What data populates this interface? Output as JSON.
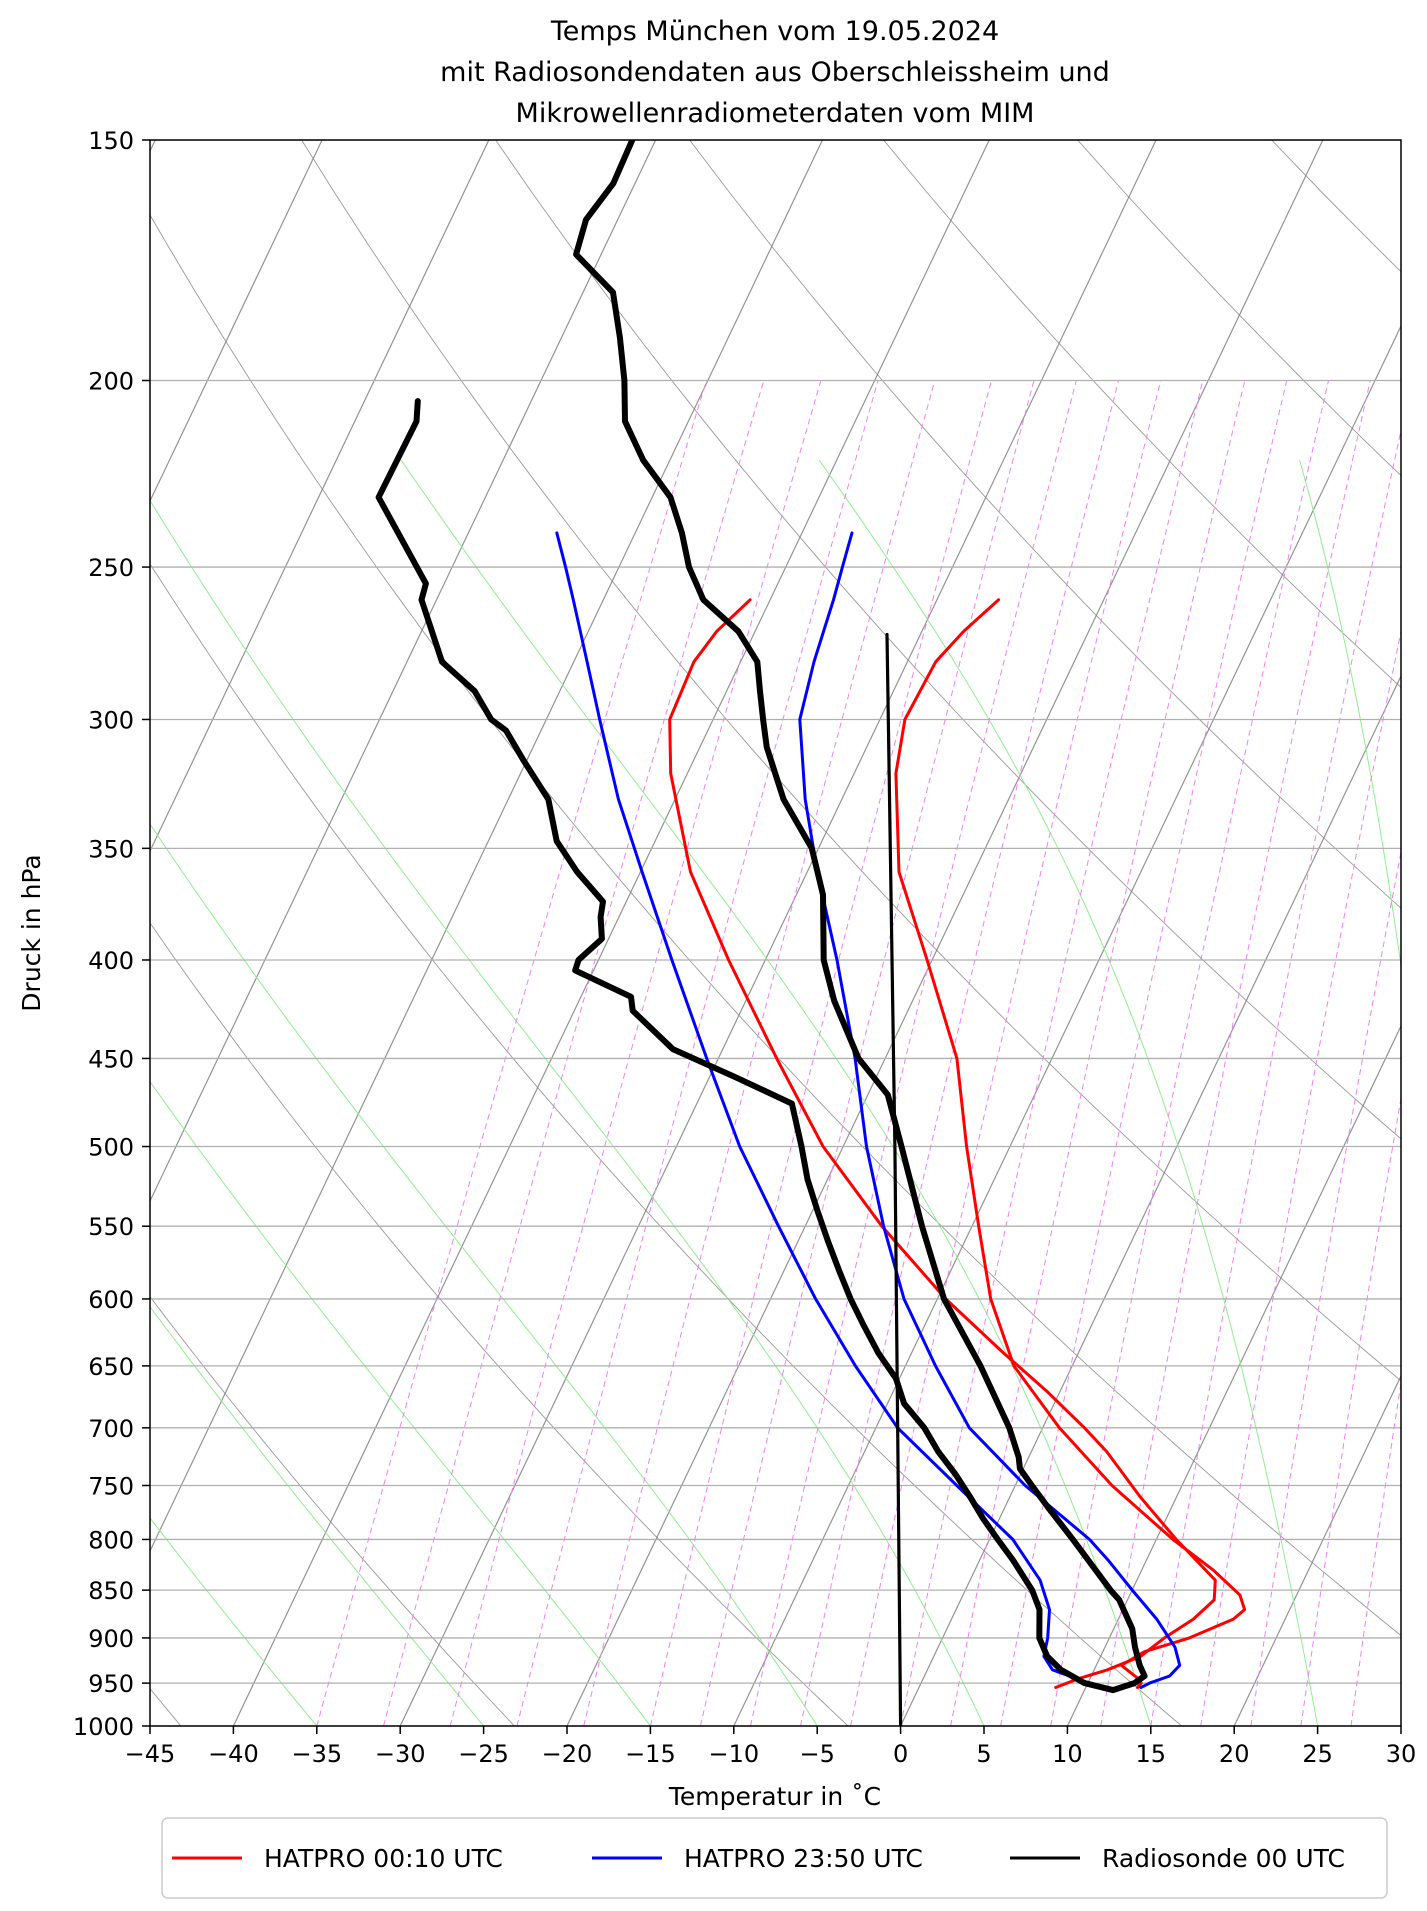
{
  "chart_data": {
    "type": "line",
    "title": {
      "lines": [
        "Temps München vom 19.05.2024",
        "mit Radiosondendaten aus Oberschleissheim und",
        "Mikrowellenradiometerdaten vom MIM"
      ]
    },
    "xlabel": "Temperatur in $^\\circ$C",
    "xlabel_display": "Temperatur in ˚C",
    "ylabel": "Druck in hPa",
    "xlim": [
      -45,
      30
    ],
    "ylim": [
      1000,
      150
    ],
    "y_scale": "log",
    "skew_per_decade": 55,
    "x_ticks": [
      -45,
      -40,
      -35,
      -30,
      -25,
      -20,
      -15,
      -10,
      -5,
      0,
      5,
      10,
      15,
      20,
      25,
      30
    ],
    "x_tick_labels": [
      "−45",
      "−40",
      "−35",
      "−30",
      "−25",
      "−20",
      "−15",
      "−10",
      "−5",
      "0",
      "5",
      "10",
      "15",
      "20",
      "25",
      "30"
    ],
    "y_ticks": [
      1000,
      950,
      900,
      850,
      800,
      750,
      700,
      650,
      600,
      550,
      500,
      450,
      400,
      350,
      300,
      250,
      200,
      150
    ],
    "y_tick_labels": [
      "1000",
      "950",
      "900",
      "850",
      "800",
      "750",
      "700",
      "650",
      "600",
      "550",
      "500",
      "450",
      "400",
      "350",
      "300",
      "250",
      "200",
      "150"
    ],
    "isotherm_temps": [
      -120,
      -110,
      -100,
      -90,
      -80,
      -70,
      -60,
      -50,
      -40,
      -30,
      -20,
      -10,
      0,
      10,
      20,
      30
    ],
    "dry_adiabat_thetas_K": [
      230,
      250,
      270,
      290,
      310,
      330,
      350,
      370,
      390,
      410,
      430,
      450,
      470
    ],
    "moist_adiabat_start_temps": [
      -35,
      -25,
      -15,
      -5,
      5,
      15,
      25,
      35
    ],
    "mixing_ratio_start_temps": [
      -35,
      -31,
      -27,
      -23,
      -19,
      -15,
      -12,
      -9,
      -6,
      -3,
      0,
      3,
      6,
      9,
      12,
      15,
      18,
      21,
      24,
      27
    ],
    "legend": {
      "position": "bottom-center, below plot",
      "entries": [
        {
          "label": "HATPRO 00:10 UTC",
          "color": "#ff0000"
        },
        {
          "label": "HATPRO 23:50 UTC",
          "color": "#0000ff"
        },
        {
          "label": "Radiosonde 00 UTC",
          "color": "#000000"
        }
      ]
    },
    "colors": {
      "hatpro_0010": "#ff0000",
      "hatpro_2350": "#0000ff",
      "radiosonde": "#000000",
      "isotherm": "#808080",
      "dry_adiabat": "#808080",
      "moist_adiabat": "#90ee90",
      "mixing_ratio": "#ee82ee",
      "grid": "#b0b0b0"
    },
    "series": [
      {
        "name": "HATPRO 00:10 UTC temperature",
        "color": "#ff0000",
        "width": "thin",
        "points": [
          [
            955,
            13.1
          ],
          [
            950,
            13.2
          ],
          [
            945,
            12.9
          ],
          [
            930,
            11.5
          ],
          [
            915,
            12.5
          ],
          [
            900,
            14.8
          ],
          [
            880,
            16.9
          ],
          [
            870,
            17.3
          ],
          [
            855,
            16.6
          ],
          [
            830,
            14.3
          ],
          [
            800,
            11.0
          ],
          [
            750,
            5.8
          ],
          [
            700,
            1.0
          ],
          [
            650,
            -3.5
          ],
          [
            600,
            -6.8
          ],
          [
            550,
            -9.6
          ],
          [
            500,
            -12.6
          ],
          [
            450,
            -15.7
          ],
          [
            400,
            -20.3
          ],
          [
            360,
            -24.5
          ],
          [
            320,
            -27.5
          ],
          [
            300,
            -28.5
          ],
          [
            280,
            -28.3
          ],
          [
            270,
            -27.5
          ],
          [
            260,
            -26.3
          ]
        ]
      },
      {
        "name": "HATPRO 00:10 UTC dew point",
        "color": "#ff0000",
        "width": "thin",
        "points": [
          [
            955,
            8.2
          ],
          [
            945,
            9.3
          ],
          [
            935,
            10.8
          ],
          [
            920,
            12.4
          ],
          [
            900,
            13.3
          ],
          [
            880,
            14.5
          ],
          [
            860,
            15.2
          ],
          [
            840,
            14.7
          ],
          [
            800,
            11.2
          ],
          [
            760,
            7.8
          ],
          [
            720,
            4.5
          ],
          [
            700,
            2.5
          ],
          [
            670,
            -0.8
          ],
          [
            640,
            -4.5
          ],
          [
            600,
            -9.5
          ],
          [
            550,
            -15.4
          ],
          [
            500,
            -21.2
          ],
          [
            450,
            -26.5
          ],
          [
            400,
            -32.2
          ],
          [
            360,
            -37.0
          ],
          [
            320,
            -41.0
          ],
          [
            300,
            -42.6
          ],
          [
            280,
            -42.8
          ],
          [
            270,
            -42.3
          ],
          [
            260,
            -41.2
          ]
        ]
      },
      {
        "name": "HATPRO 23:50 UTC temperature",
        "color": "#0000ff",
        "width": "thin",
        "points": [
          [
            955,
            13.3
          ],
          [
            950,
            13.7
          ],
          [
            942,
            14.7
          ],
          [
            930,
            15.0
          ],
          [
            910,
            14.2
          ],
          [
            880,
            12.3
          ],
          [
            850,
            10.0
          ],
          [
            820,
            7.7
          ],
          [
            800,
            6.0
          ],
          [
            750,
            0.6
          ],
          [
            700,
            -4.4
          ],
          [
            650,
            -8.2
          ],
          [
            600,
            -12.0
          ],
          [
            550,
            -15.3
          ],
          [
            500,
            -18.6
          ],
          [
            450,
            -21.8
          ],
          [
            400,
            -25.7
          ],
          [
            360,
            -29.4
          ],
          [
            330,
            -32.2
          ],
          [
            300,
            -34.8
          ],
          [
            280,
            -35.6
          ],
          [
            260,
            -36.2
          ],
          [
            250,
            -36.6
          ],
          [
            240,
            -37.0
          ]
        ]
      },
      {
        "name": "HATPRO 23:50 UTC dew point",
        "color": "#0000ff",
        "width": "thin",
        "points": [
          [
            955,
            11.0
          ],
          [
            945,
            9.2
          ],
          [
            935,
            7.5
          ],
          [
            920,
            6.6
          ],
          [
            900,
            6.3
          ],
          [
            870,
            5.6
          ],
          [
            840,
            4.2
          ],
          [
            800,
            1.4
          ],
          [
            750,
            -3.5
          ],
          [
            700,
            -8.7
          ],
          [
            650,
            -13.0
          ],
          [
            600,
            -17.3
          ],
          [
            550,
            -21.6
          ],
          [
            500,
            -26.2
          ],
          [
            450,
            -30.7
          ],
          [
            400,
            -35.6
          ],
          [
            360,
            -39.9
          ],
          [
            330,
            -43.4
          ],
          [
            300,
            -46.8
          ],
          [
            280,
            -49.2
          ],
          [
            260,
            -51.8
          ],
          [
            250,
            -53.2
          ],
          [
            240,
            -54.7
          ]
        ]
      },
      {
        "name": "Radiosonde 00 UTC temperature",
        "color": "#000000",
        "width": "thick",
        "points": [
          [
            958,
            11.7
          ],
          [
            950,
            12.8
          ],
          [
            942,
            13.2
          ],
          [
            930,
            12.6
          ],
          [
            910,
            11.8
          ],
          [
            890,
            11.1
          ],
          [
            860,
            9.5
          ],
          [
            850,
            8.7
          ],
          [
            800,
            5.0
          ],
          [
            770,
            2.6
          ],
          [
            750,
            1.0
          ],
          [
            735,
            -0.2
          ],
          [
            725,
            -0.6
          ],
          [
            700,
            -2.0
          ],
          [
            650,
            -5.5
          ],
          [
            600,
            -9.6
          ],
          [
            550,
            -13.0
          ],
          [
            500,
            -16.5
          ],
          [
            470,
            -18.8
          ],
          [
            450,
            -21.6
          ],
          [
            420,
            -24.7
          ],
          [
            400,
            -26.5
          ],
          [
            370,
            -28.4
          ],
          [
            350,
            -30.4
          ],
          [
            330,
            -33.5
          ],
          [
            310,
            -36.0
          ],
          [
            300,
            -37.0
          ],
          [
            290,
            -38.0
          ],
          [
            280,
            -39.0
          ],
          [
            270,
            -41.0
          ],
          [
            260,
            -44.0
          ],
          [
            250,
            -45.8
          ],
          [
            240,
            -47.2
          ],
          [
            230,
            -48.9
          ],
          [
            220,
            -51.6
          ],
          [
            210,
            -53.8
          ],
          [
            200,
            -55.0
          ],
          [
            190,
            -56.5
          ],
          [
            180,
            -58.2
          ],
          [
            172,
            -61.5
          ],
          [
            165,
            -61.9
          ],
          [
            158,
            -61.3
          ],
          [
            150,
            -61.4
          ]
        ]
      },
      {
        "name": "Radiosonde 00 UTC dew point",
        "color": "#000000",
        "width": "thick",
        "points": [
          [
            958,
            11.7
          ],
          [
            950,
            9.8
          ],
          [
            935,
            8.0
          ],
          [
            920,
            6.8
          ],
          [
            900,
            5.8
          ],
          [
            870,
            5.0
          ],
          [
            850,
            4.0
          ],
          [
            820,
            2.0
          ],
          [
            800,
            0.5
          ],
          [
            780,
            -1.0
          ],
          [
            760,
            -2.4
          ],
          [
            740,
            -3.9
          ],
          [
            720,
            -5.6
          ],
          [
            700,
            -7.1
          ],
          [
            680,
            -9.0
          ],
          [
            660,
            -10.2
          ],
          [
            640,
            -12.0
          ],
          [
            620,
            -13.6
          ],
          [
            600,
            -15.2
          ],
          [
            580,
            -16.7
          ],
          [
            560,
            -18.2
          ],
          [
            540,
            -19.7
          ],
          [
            520,
            -21.2
          ],
          [
            500,
            -22.5
          ],
          [
            475,
            -24.3
          ],
          [
            460,
            -28.5
          ],
          [
            445,
            -33.0
          ],
          [
            425,
            -36.5
          ],
          [
            418,
            -37.0
          ],
          [
            405,
            -41.1
          ],
          [
            400,
            -41.2
          ],
          [
            390,
            -40.4
          ],
          [
            380,
            -41.1
          ],
          [
            373,
            -41.4
          ],
          [
            360,
            -43.8
          ],
          [
            347,
            -45.9
          ],
          [
            330,
            -47.6
          ],
          [
            315,
            -50.2
          ],
          [
            304,
            -52.1
          ],
          [
            300,
            -53.3
          ],
          [
            290,
            -55.1
          ],
          [
            280,
            -57.9
          ],
          [
            260,
            -60.9
          ],
          [
            255,
            -61.1
          ],
          [
            230,
            -66.4
          ],
          [
            210,
            -66.3
          ],
          [
            205,
            -66.8
          ]
        ]
      },
      {
        "name": "dry reference line",
        "color": "#000000",
        "width": "medium",
        "points": [
          [
            1000,
            0.0
          ],
          [
            500,
            -16.9
          ],
          [
            271,
            -32.0
          ]
        ]
      }
    ]
  }
}
